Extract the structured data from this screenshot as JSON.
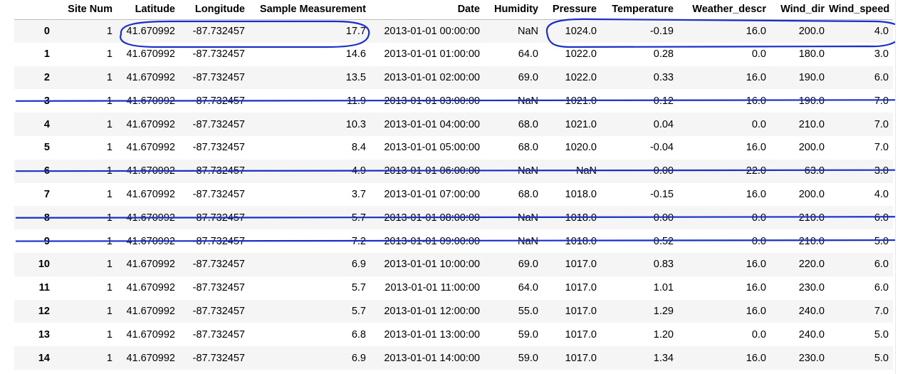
{
  "table": {
    "columns": [
      "",
      "Site Num",
      "Latitude",
      "Longitude",
      "Sample Measurement",
      "Date",
      "Humidity",
      "Pressure",
      "Temperature",
      "Weather_descr",
      "Wind_dir",
      "Wind_speed"
    ],
    "rows": [
      [
        "0",
        "1",
        "41.670992",
        "-87.732457",
        "17.7",
        "2013-01-01 00:00:00",
        "NaN",
        "1024.0",
        "-0.19",
        "16.0",
        "200.0",
        "4.0"
      ],
      [
        "1",
        "1",
        "41.670992",
        "-87.732457",
        "14.6",
        "2013-01-01 01:00:00",
        "64.0",
        "1022.0",
        "0.28",
        "0.0",
        "180.0",
        "3.0"
      ],
      [
        "2",
        "1",
        "41.670992",
        "-87.732457",
        "13.5",
        "2013-01-01 02:00:00",
        "69.0",
        "1022.0",
        "0.33",
        "16.0",
        "190.0",
        "6.0"
      ],
      [
        "3",
        "1",
        "41.670992",
        "-87.732457",
        "11.9",
        "2013-01-01 03:00:00",
        "NaN",
        "1021.0",
        "0.12",
        "16.0",
        "190.0",
        "7.0"
      ],
      [
        "4",
        "1",
        "41.670992",
        "-87.732457",
        "10.3",
        "2013-01-01 04:00:00",
        "68.0",
        "1021.0",
        "0.04",
        "0.0",
        "210.0",
        "7.0"
      ],
      [
        "5",
        "1",
        "41.670992",
        "-87.732457",
        "8.4",
        "2013-01-01 05:00:00",
        "68.0",
        "1020.0",
        "-0.04",
        "16.0",
        "200.0",
        "7.0"
      ],
      [
        "6",
        "1",
        "41.670992",
        "-87.732457",
        "4.9",
        "2013-01-01 06:00:00",
        "NaN",
        "NaN",
        "0.00",
        "22.0",
        "63.0",
        "3.0"
      ],
      [
        "7",
        "1",
        "41.670992",
        "-87.732457",
        "3.7",
        "2013-01-01 07:00:00",
        "68.0",
        "1018.0",
        "-0.15",
        "16.0",
        "200.0",
        "4.0"
      ],
      [
        "8",
        "1",
        "41.670992",
        "-87.732457",
        "5.7",
        "2013-01-01 08:00:00",
        "NaN",
        "1018.0",
        "0.00",
        "0.0",
        "210.0",
        "6.0"
      ],
      [
        "9",
        "1",
        "41.670992",
        "-87.732457",
        "7.2",
        "2013-01-01 09:00:00",
        "NaN",
        "1018.0",
        "0.52",
        "0.0",
        "210.0",
        "5.0"
      ],
      [
        "10",
        "1",
        "41.670992",
        "-87.732457",
        "6.9",
        "2013-01-01 10:00:00",
        "69.0",
        "1017.0",
        "0.83",
        "16.0",
        "220.0",
        "6.0"
      ],
      [
        "11",
        "1",
        "41.670992",
        "-87.732457",
        "5.7",
        "2013-01-01 11:00:00",
        "64.0",
        "1017.0",
        "1.01",
        "16.0",
        "230.0",
        "6.0"
      ],
      [
        "12",
        "1",
        "41.670992",
        "-87.732457",
        "5.7",
        "2013-01-01 12:00:00",
        "55.0",
        "1017.0",
        "1.29",
        "16.0",
        "240.0",
        "7.0"
      ],
      [
        "13",
        "1",
        "41.670992",
        "-87.732457",
        "6.8",
        "2013-01-01 13:00:00",
        "59.0",
        "1017.0",
        "1.20",
        "0.0",
        "240.0",
        "5.0"
      ],
      [
        "14",
        "1",
        "41.670992",
        "-87.732457",
        "6.9",
        "2013-01-01 14:00:00",
        "59.0",
        "1017.0",
        "1.34",
        "16.0",
        "230.0",
        "5.0"
      ]
    ],
    "strikethrough_rows": [
      "3",
      "6",
      "8",
      "9"
    ],
    "circled_row": "0"
  },
  "colors": {
    "annotation_pen": "#1a2fc7",
    "stripe": "#f5f5f5",
    "header_rule": "#bdbdbd"
  }
}
